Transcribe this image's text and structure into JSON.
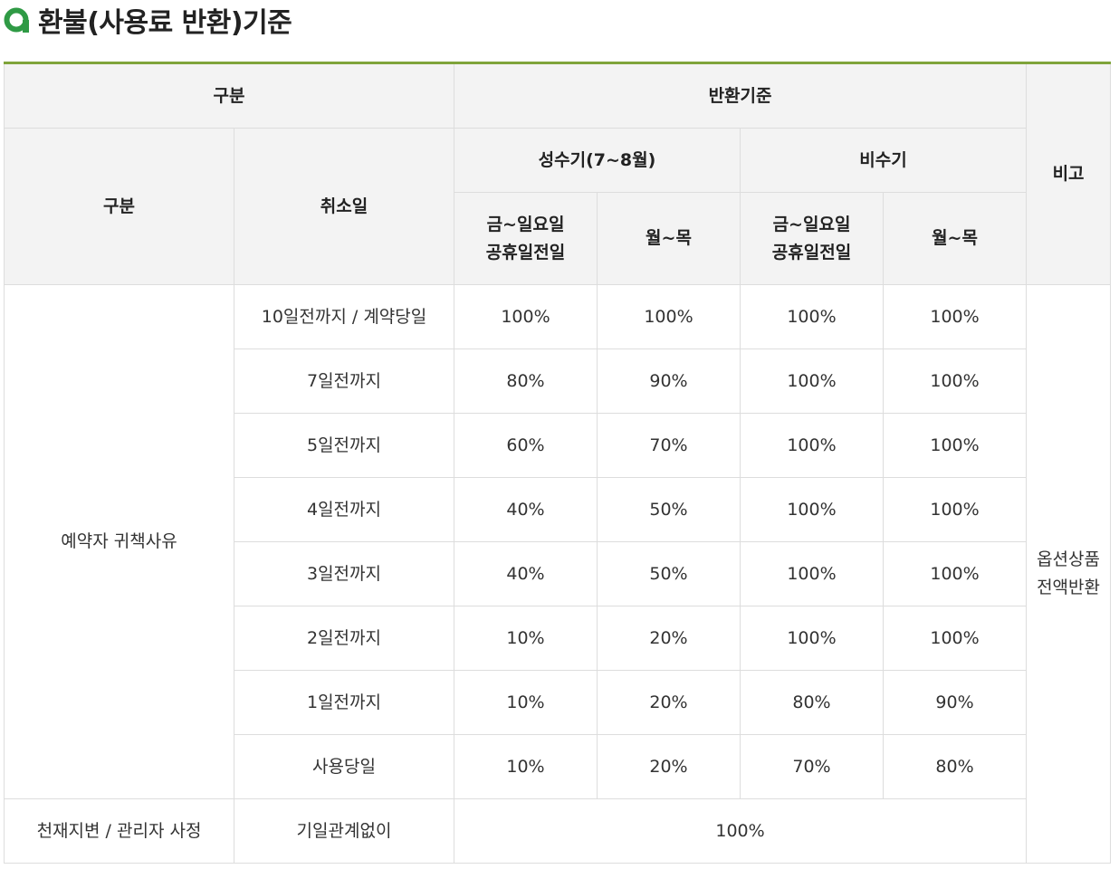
{
  "page": {
    "title": "환불(사용료 반환)기준",
    "accent_color": "#7fa43a",
    "icon": "green-circle-icon"
  },
  "table": {
    "header": {
      "category": "구분",
      "refund_standard": "반환기준",
      "remarks": "비고",
      "sub_category": "구분",
      "cancel_day": "취소일",
      "peak_season": "성수기(7~8월)",
      "off_season": "비수기",
      "fri_sun_line1": "금~일요일",
      "fri_sun_line2": "공휴일전일",
      "mon_thu": "월~목"
    },
    "group_label": "예약자 귀책사유",
    "rows": [
      {
        "day": "10일전까지 / 계약당일",
        "peak_weekend": "100%",
        "peak_weekday": "100%",
        "off_weekend": "100%",
        "off_weekday": "100%"
      },
      {
        "day": "7일전까지",
        "peak_weekend": "80%",
        "peak_weekday": "90%",
        "off_weekend": "100%",
        "off_weekday": "100%"
      },
      {
        "day": "5일전까지",
        "peak_weekend": "60%",
        "peak_weekday": "70%",
        "off_weekend": "100%",
        "off_weekday": "100%"
      },
      {
        "day": "4일전까지",
        "peak_weekend": "40%",
        "peak_weekday": "50%",
        "off_weekend": "100%",
        "off_weekday": "100%"
      },
      {
        "day": "3일전까지",
        "peak_weekend": "40%",
        "peak_weekday": "50%",
        "off_weekend": "100%",
        "off_weekday": "100%"
      },
      {
        "day": "2일전까지",
        "peak_weekend": "10%",
        "peak_weekday": "20%",
        "off_weekend": "100%",
        "off_weekday": "100%"
      },
      {
        "day": "1일전까지",
        "peak_weekend": "10%",
        "peak_weekday": "20%",
        "off_weekend": "80%",
        "off_weekday": "90%"
      },
      {
        "day": "사용당일",
        "peak_weekend": "10%",
        "peak_weekday": "20%",
        "off_weekend": "70%",
        "off_weekday": "80%"
      }
    ],
    "remarks_line1": "옵션상품",
    "remarks_line2": "전액반환",
    "force_majeure": {
      "category": "천재지변 / 관리자 사정",
      "day": "기일관계없이",
      "refund": "100%"
    }
  }
}
